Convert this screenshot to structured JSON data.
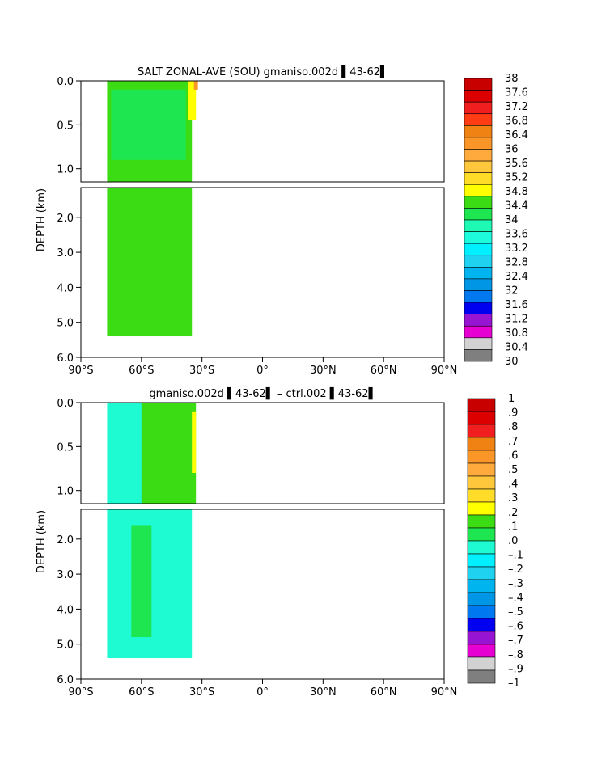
{
  "chart_data": [
    {
      "type": "contour",
      "title": "SALT ZONAL-AVE (SOU) gmaniso.002d ▌43-62▌",
      "ylabel": "DEPTH (km)",
      "x_tick_labels": [
        "90°S",
        "60°S",
        "30°S",
        "0°",
        "30°N",
        "60°N",
        "90°N"
      ],
      "x_ticks": [
        -90,
        -60,
        -30,
        0,
        30,
        60,
        90
      ],
      "xlim": [
        -90,
        90
      ],
      "y_top_ticks": [
        0.0,
        0.5,
        1.0
      ],
      "y_top_tick_labels": [
        "0.0",
        "0.5",
        "1.0"
      ],
      "y_bottom_ticks": [
        2.0,
        3.0,
        4.0,
        5.0,
        6.0
      ],
      "y_bottom_tick_labels": [
        "2.0",
        "3.0",
        "4.0",
        "5.0",
        "6.0"
      ],
      "ylim_top": [
        0,
        1.15
      ],
      "ylim_bottom": [
        1.15,
        6.0
      ],
      "colorbar_labels": [
        "38",
        "37.6",
        "37.2",
        "36.8",
        "36.4",
        "36",
        "35.6",
        "35.2",
        "34.8",
        "34.4",
        "34",
        "33.6",
        "33.2",
        "32.8",
        "32.4",
        "32",
        "31.6",
        "31.2",
        "30.8",
        "30.4",
        "30"
      ],
      "colorbar_colors": [
        "#c80000",
        "#dc0000",
        "#f01e1e",
        "#ff3c14",
        "#f08214",
        "#fa9628",
        "#ffaa3c",
        "#ffc83c",
        "#ffdc28",
        "#ffff00",
        "#3cdc14",
        "#1ee650",
        "#1efab4",
        "#1efadc",
        "#00f0ff",
        "#1ed2f0",
        "#00b4f0",
        "#0096e6",
        "#0078f0",
        "#0000f0",
        "#9614d2",
        "#e600d2",
        "#d2d2d2",
        "#7f7f7f"
      ],
      "fill_regions": [
        {
          "color": "#3cdc14",
          "lon_west": -77,
          "lon_east": -35,
          "depth_top": 0.0,
          "depth_bottom": 5.4
        },
        {
          "color": "#1ee650",
          "lon_west": -75,
          "lon_east": -38,
          "depth_top": 0.1,
          "depth_bottom": 0.9
        },
        {
          "color": "#ffff00",
          "lon_west": -37,
          "lon_east": -33,
          "depth_top": 0.0,
          "depth_bottom": 0.45
        },
        {
          "color": "#fa9628",
          "lon_west": -34,
          "lon_east": -32,
          "depth_top": 0.0,
          "depth_bottom": 0.1
        }
      ]
    },
    {
      "type": "contour",
      "title": "gmaniso.002d ▌43-62▌ – ctrl.002 ▌43-62▌",
      "ylabel": "DEPTH (km)",
      "x_tick_labels": [
        "90°S",
        "60°S",
        "30°S",
        "0°",
        "30°N",
        "60°N",
        "90°N"
      ],
      "x_ticks": [
        -90,
        -60,
        -30,
        0,
        30,
        60,
        90
      ],
      "xlim": [
        -90,
        90
      ],
      "y_top_ticks": [
        0.0,
        0.5,
        1.0
      ],
      "y_top_tick_labels": [
        "0.0",
        "0.5",
        "1.0"
      ],
      "y_bottom_ticks": [
        2.0,
        3.0,
        4.0,
        5.0,
        6.0
      ],
      "y_bottom_tick_labels": [
        "2.0",
        "3.0",
        "4.0",
        "5.0",
        "6.0"
      ],
      "ylim_top": [
        0,
        1.15
      ],
      "ylim_bottom": [
        1.15,
        6.0
      ],
      "colorbar_labels": [
        "1",
        ".9",
        ".8",
        ".7",
        ".6",
        ".5",
        ".4",
        ".3",
        ".2",
        ".1",
        ".0",
        "–.1",
        "–.2",
        "–.3",
        "–.4",
        "–.5",
        "–.6",
        "–.7",
        "–.8",
        "–.9",
        "–1"
      ],
      "colorbar_colors": [
        "#c80000",
        "#dc0000",
        "#f01e1e",
        "#f08214",
        "#fa9628",
        "#ffaa3c",
        "#ffc83c",
        "#ffdc28",
        "#ffff00",
        "#3cdc14",
        "#1ee650",
        "#1efad2",
        "#00f0ff",
        "#1ed2f0",
        "#00b4f0",
        "#0096e6",
        "#0078f0",
        "#0000f0",
        "#9614d2",
        "#e600d2",
        "#d2d2d2",
        "#7f7f7f"
      ],
      "fill_regions": [
        {
          "color": "#1efad2",
          "lon_west": -77,
          "lon_east": -35,
          "depth_top": 0.0,
          "depth_bottom": 5.4
        },
        {
          "color": "#3cdc14",
          "lon_west": -60,
          "lon_east": -33,
          "depth_top": 0.0,
          "depth_bottom": 1.15
        },
        {
          "color": "#1ee650",
          "lon_west": -65,
          "lon_east": -55,
          "depth_top": 1.6,
          "depth_bottom": 4.8
        },
        {
          "color": "#ffff00",
          "lon_west": -35,
          "lon_east": -33,
          "depth_top": 0.1,
          "depth_bottom": 0.8
        }
      ]
    }
  ]
}
